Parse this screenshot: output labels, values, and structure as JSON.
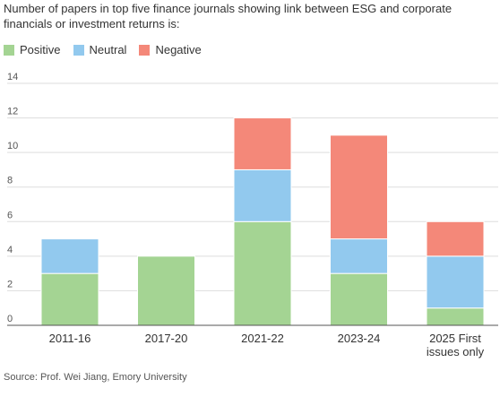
{
  "chart_data": {
    "type": "bar",
    "stacked": true,
    "title": "Number of papers in top five finance journals showing link between ESG and corporate financials or investment returns is:",
    "categories": [
      "2011-16",
      "2017-20",
      "2021-22",
      "2023-24",
      "2025 First issues only"
    ],
    "category_lines": [
      [
        "2011-16"
      ],
      [
        "2017-20"
      ],
      [
        "2021-22"
      ],
      [
        "2023-24"
      ],
      [
        "2025 First",
        "issues only"
      ]
    ],
    "series": [
      {
        "name": "Positive",
        "color": "#a4d493",
        "values": [
          3,
          4,
          6,
          3,
          1
        ]
      },
      {
        "name": "Neutral",
        "color": "#92c9ee",
        "values": [
          2,
          0,
          3,
          2,
          3
        ]
      },
      {
        "name": "Negative",
        "color": "#f48879",
        "values": [
          0,
          0,
          3,
          6,
          2
        ]
      }
    ],
    "ylim": [
      0,
      14
    ],
    "yticks": [
      0,
      2,
      4,
      6,
      8,
      10,
      12,
      14
    ],
    "grid": true,
    "legend_position": "top-left",
    "source": "Source: Prof. Wei Jiang, Emory University"
  }
}
